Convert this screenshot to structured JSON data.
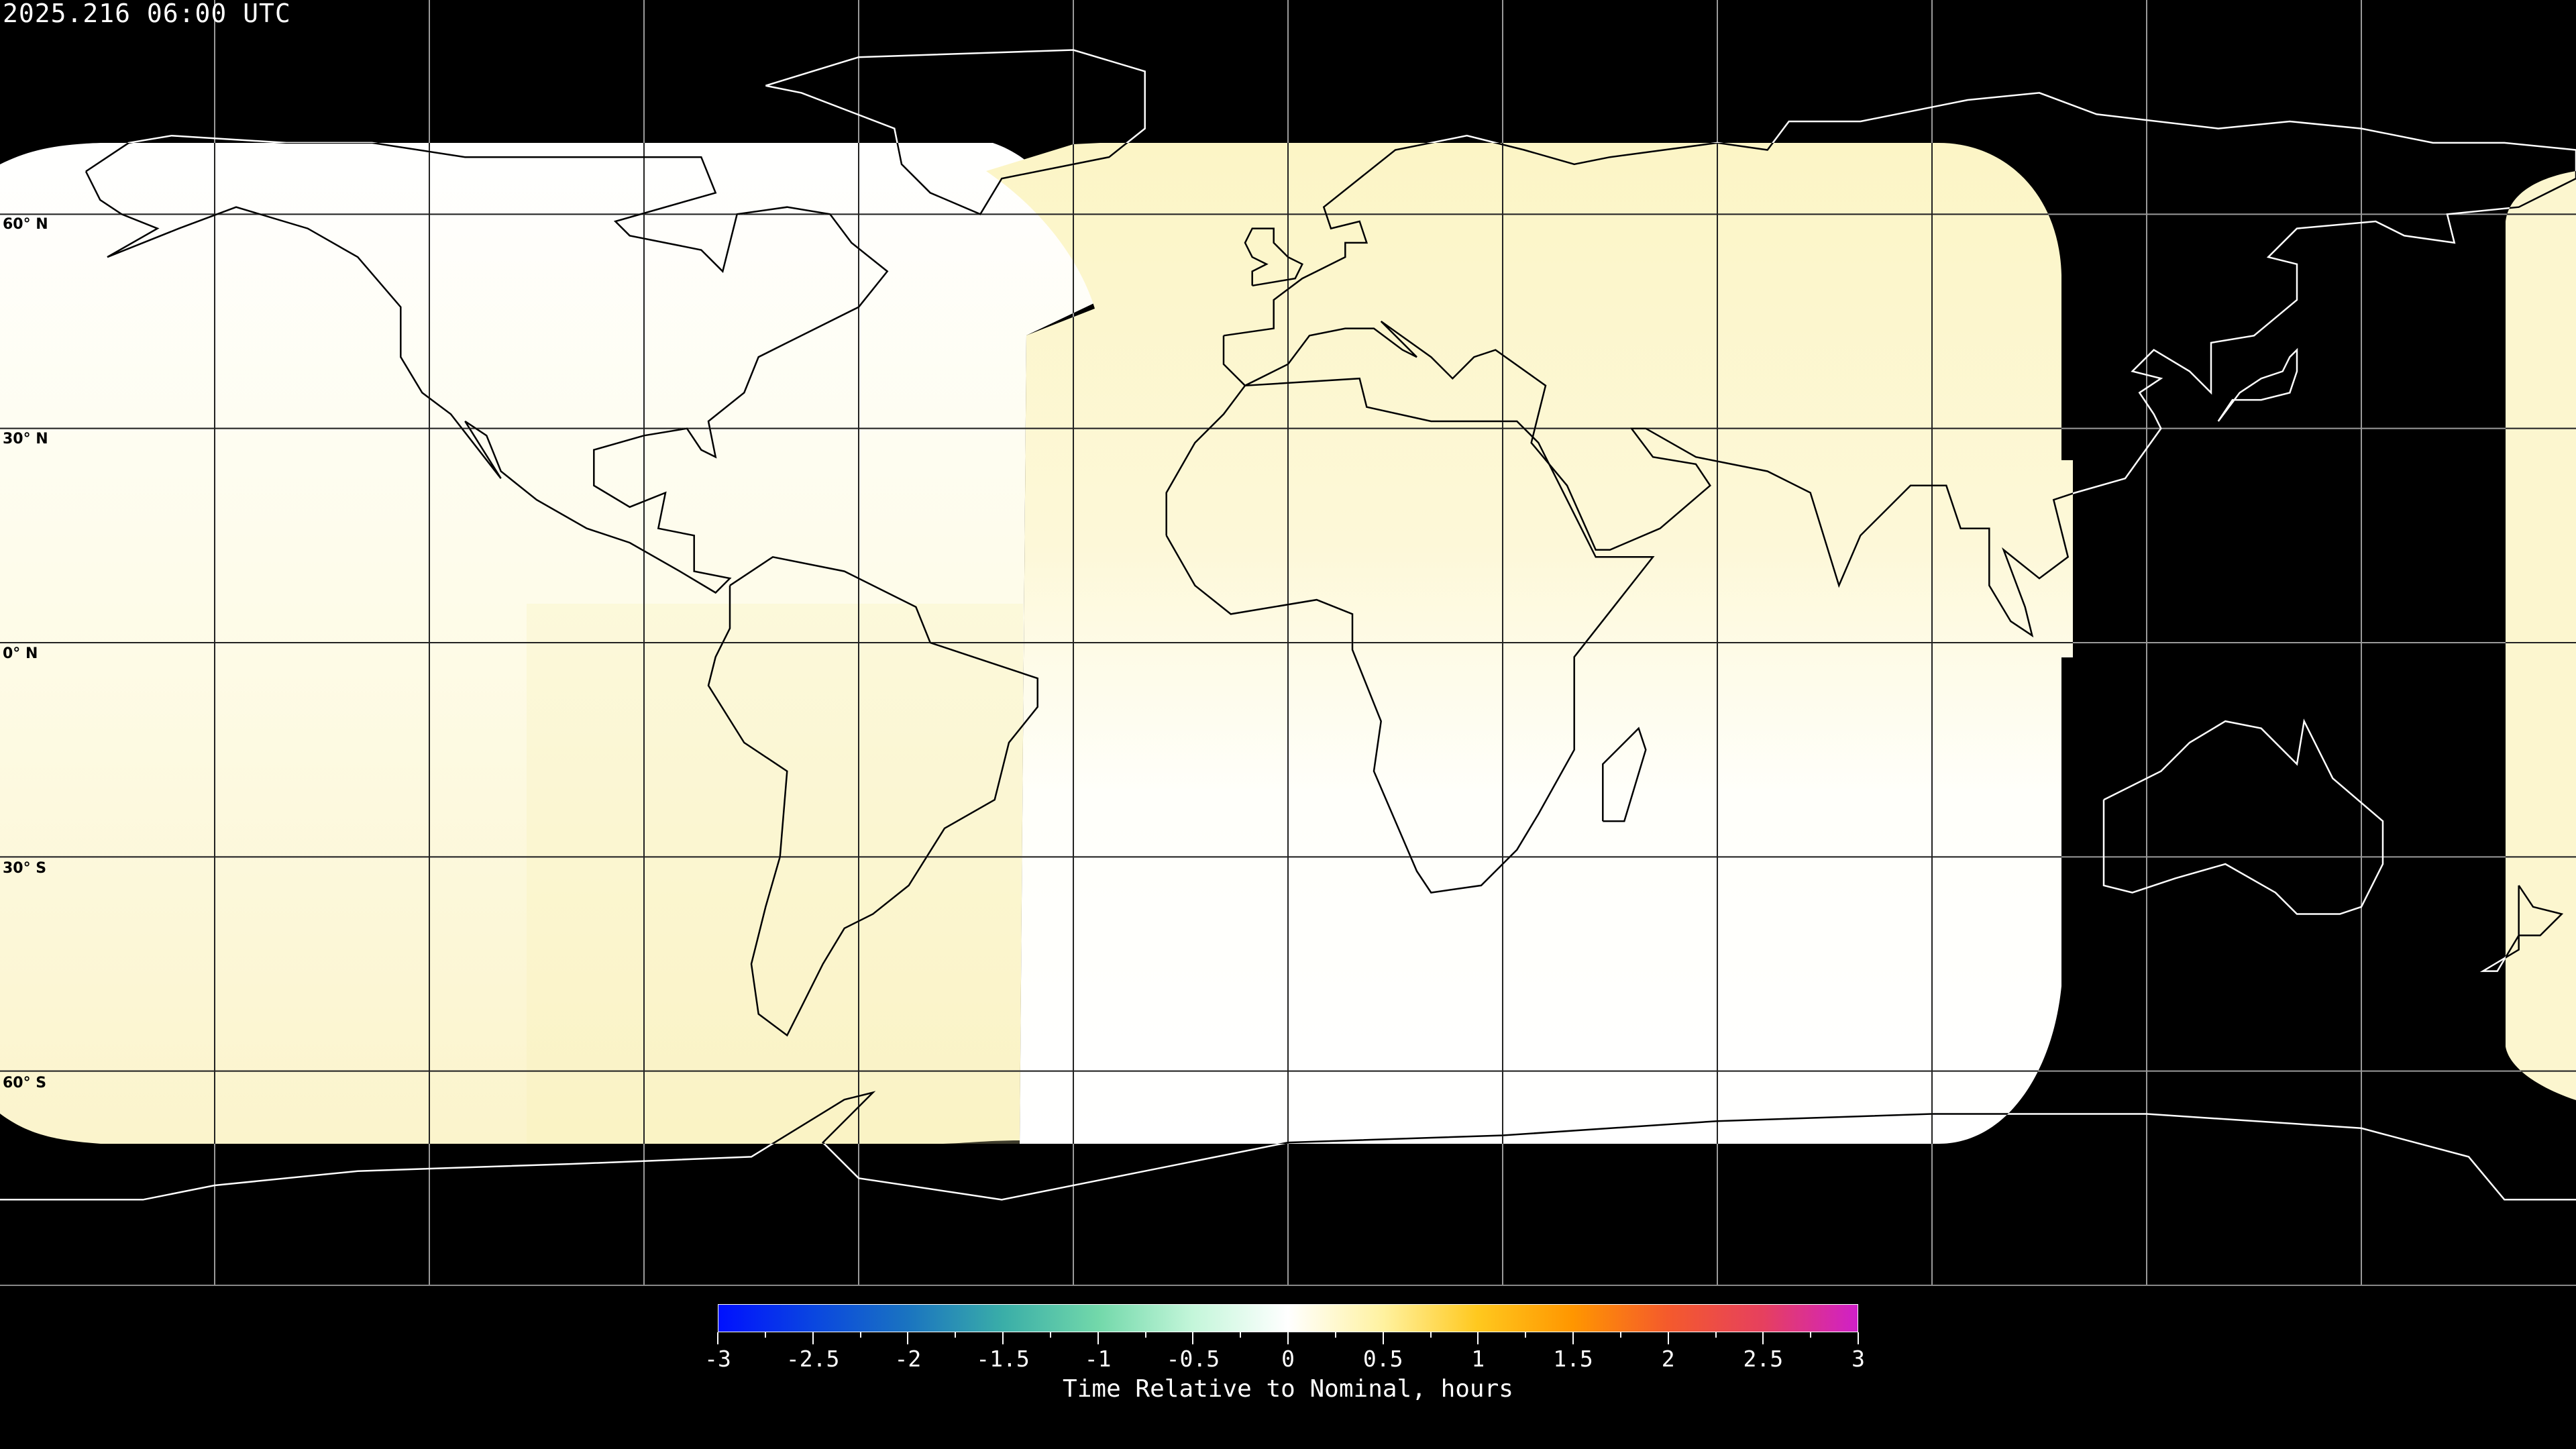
{
  "title": "2025.216 06:00 UTC",
  "latitude_labels": [
    "60° N",
    "30° N",
    "0° N",
    "30° S",
    "60° S"
  ],
  "colorbar": {
    "label": "Time Relative to Nominal, hours",
    "range": [
      -3,
      3
    ],
    "tick_labels": [
      "-3",
      "-2.5",
      "-2",
      "-1.5",
      "-1",
      "-0.5",
      "0",
      "0.5",
      "1",
      "1.5",
      "2",
      "2.5",
      "3"
    ],
    "colors": {
      "-3": "#0010ff",
      "-2.5": "#0a46e0",
      "-2": "#1a74c0",
      "-1.5": "#3aaea8",
      "-1": "#72d8aa",
      "-0.5": "#c4f6da",
      "0": "#ffffff",
      "0.5": "#fff2a0",
      "1": "#ffc81e",
      "1.5": "#ff9600",
      "2": "#f45a2c",
      "2.5": "#e6405e",
      "3": "#d020c8"
    }
  },
  "map": {
    "projection": "equirectangular",
    "gridline_spacing_deg": 30,
    "coverage_colors": {
      "near_zero": "#ffffff",
      "slightly_positive": "#fbf5c8",
      "no_data": "#000000"
    }
  }
}
